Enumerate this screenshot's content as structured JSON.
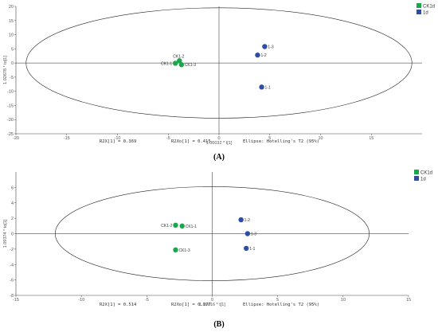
{
  "chart_data": [
    {
      "type": "scatter",
      "panel_label": "(A)",
      "xlabel": "1.00032 * t[1]",
      "ylabel": "1.02678 * to[1]",
      "xlim": [
        -20,
        20
      ],
      "ylim": [
        -25,
        20
      ],
      "xticks": [
        -20,
        -15,
        -10,
        -5,
        0,
        5,
        10,
        15
      ],
      "yticks": [
        -25,
        -20,
        -15,
        -10,
        -5,
        0,
        5,
        10,
        15,
        20
      ],
      "ellipse": {
        "cx": 0,
        "cy": 0,
        "rx": 19,
        "ry": 19.5
      },
      "legend_position": "top-right",
      "series": [
        {
          "name": "CK1d",
          "color": "#1aa64b",
          "points": [
            {
              "x": -3.9,
              "y": 0.8,
              "label": "CK1-2"
            },
            {
              "x": -4.3,
              "y": -0.1,
              "label": "CK1-1"
            },
            {
              "x": -3.7,
              "y": -0.6,
              "label": "CK1-3"
            }
          ]
        },
        {
          "name": "1d",
          "color": "#2e4ea6",
          "points": [
            {
              "x": 4.5,
              "y": 5.8,
              "label": "1-3"
            },
            {
              "x": 3.8,
              "y": 2.8,
              "label": "1-2"
            },
            {
              "x": 4.2,
              "y": -8.5,
              "label": "1-1"
            }
          ]
        }
      ],
      "footer": {
        "r2x": "R2X[1] = 0.369",
        "r2xo": "R2Xo[1] = 0.415",
        "ellipse_note": "Ellipse: Hotelling's T2 (95%)"
      }
    },
    {
      "type": "scatter",
      "panel_label": "(B)",
      "xlabel": "1.00016 * t[1]",
      "ylabel": "1.09374 * to[1]",
      "xlim": [
        -15,
        15
      ],
      "ylim": [
        -8,
        8
      ],
      "xticks": [
        -15,
        -10,
        -5,
        0,
        5,
        10,
        15
      ],
      "yticks": [
        -8,
        -6,
        -4,
        -2,
        0,
        2,
        4,
        6
      ],
      "ellipse": {
        "cx": 0,
        "cy": 0,
        "rx": 12,
        "ry": 6.1
      },
      "legend_position": "top-right",
      "series": [
        {
          "name": "CK1d",
          "color": "#1aa64b",
          "points": [
            {
              "x": -2.8,
              "y": 1.1,
              "label": "CK1-2"
            },
            {
              "x": -2.3,
              "y": 1.0,
              "label": "CK1-1"
            },
            {
              "x": -2.8,
              "y": -2.1,
              "label": "CK1-3"
            }
          ]
        },
        {
          "name": "1d",
          "color": "#2e4ea6",
          "points": [
            {
              "x": 2.2,
              "y": 1.8,
              "label": "1-2"
            },
            {
              "x": 2.7,
              "y": 0.0,
              "label": "1-3"
            },
            {
              "x": 2.6,
              "y": -1.9,
              "label": "1-1"
            }
          ]
        }
      ],
      "footer": {
        "r2x": "R2X[1] = 0.514",
        "r2xo": "R2Xo[1] = 0.177",
        "ellipse_note": "Ellipse: Hotelling's T2 (95%)"
      }
    }
  ]
}
